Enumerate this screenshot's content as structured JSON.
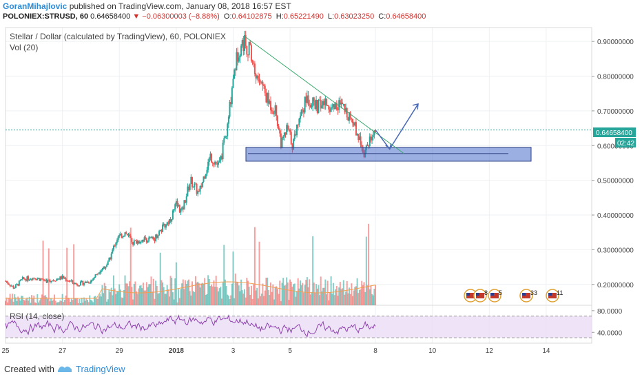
{
  "header": {
    "author": "GoranMihajlovic",
    "published": "published on TradingView.com, January 08, 2018 16:57 EST",
    "symbol": "POLONIEX:STRUSD, 60",
    "last": "0.64658400",
    "change": "−0.06300003 (−8.88%)",
    "o_label": "O:",
    "o_val": "0.64102875",
    "h_label": "H:",
    "h_val": "0.65221490",
    "l_label": "L:",
    "l_val": "0.63023250",
    "c_label": "C:",
    "c_val": "0.64658400"
  },
  "pane_title": "Stellar / Dollar (calculated by TradingView), 60, POLONIEX",
  "vol_label": "Vol (20)",
  "rsi_label": "RSI (14, close)",
  "price_label": "0.64658400",
  "timer_label": "02:42",
  "footer": {
    "created": "Created with",
    "brand": "TradingView"
  },
  "colors": {
    "up": "#26a69a",
    "down": "#ef5350",
    "accent": "#2a8bd8",
    "price_line": "#26a69a",
    "rsi_line": "#8e44ad",
    "rsi_band": "#e8d7f5",
    "zone_fill": "#4a6ecb",
    "trend": "#3caa6e",
    "arrow": "#4b6ab5"
  },
  "events": [
    "2",
    "8",
    "5",
    "33",
    "11"
  ],
  "chart_data": {
    "type": "candlestick",
    "title": "Stellar / Dollar (calculated by TradingView), 60, POLONIEX",
    "x_ticks": [
      "25",
      "27",
      "29",
      "2018",
      "3",
      "5",
      "8",
      "10",
      "12",
      "14"
    ],
    "y_ticks": [
      "0.90000000",
      "0.80000000",
      "0.70000000",
      "0.60000000",
      "0.50000000",
      "0.40000000",
      "0.30000000",
      "0.20000000"
    ],
    "y_range": [
      0.14,
      0.94
    ],
    "price_path": [
      {
        "t": 0,
        "p": 0.21
      },
      {
        "t": 0.3,
        "p": 0.19
      },
      {
        "t": 0.6,
        "p": 0.215
      },
      {
        "t": 1.0,
        "p": 0.22
      },
      {
        "t": 1.5,
        "p": 0.21
      },
      {
        "t": 2.0,
        "p": 0.22
      },
      {
        "t": 2.5,
        "p": 0.2
      },
      {
        "t": 3.0,
        "p": 0.21
      },
      {
        "t": 3.3,
        "p": 0.24
      },
      {
        "t": 3.6,
        "p": 0.26
      },
      {
        "t": 3.9,
        "p": 0.33
      },
      {
        "t": 4.2,
        "p": 0.35
      },
      {
        "t": 4.5,
        "p": 0.32
      },
      {
        "t": 4.8,
        "p": 0.33
      },
      {
        "t": 5.2,
        "p": 0.33
      },
      {
        "t": 5.5,
        "p": 0.36
      },
      {
        "t": 5.8,
        "p": 0.39
      },
      {
        "t": 6.0,
        "p": 0.43
      },
      {
        "t": 6.2,
        "p": 0.41
      },
      {
        "t": 6.5,
        "p": 0.5
      },
      {
        "t": 6.8,
        "p": 0.46
      },
      {
        "t": 7.0,
        "p": 0.52
      },
      {
        "t": 7.2,
        "p": 0.57
      },
      {
        "t": 7.5,
        "p": 0.54
      },
      {
        "t": 7.8,
        "p": 0.65
      },
      {
        "t": 8.0,
        "p": 0.8
      },
      {
        "t": 8.2,
        "p": 0.88
      },
      {
        "t": 8.4,
        "p": 0.9
      },
      {
        "t": 8.6,
        "p": 0.87
      },
      {
        "t": 8.8,
        "p": 0.8
      },
      {
        "t": 9.0,
        "p": 0.78
      },
      {
        "t": 9.2,
        "p": 0.73
      },
      {
        "t": 9.5,
        "p": 0.7
      },
      {
        "t": 9.7,
        "p": 0.6
      },
      {
        "t": 9.9,
        "p": 0.65
      },
      {
        "t": 10.1,
        "p": 0.6
      },
      {
        "t": 10.3,
        "p": 0.68
      },
      {
        "t": 10.6,
        "p": 0.74
      },
      {
        "t": 10.9,
        "p": 0.71
      },
      {
        "t": 11.2,
        "p": 0.72
      },
      {
        "t": 11.5,
        "p": 0.71
      },
      {
        "t": 11.7,
        "p": 0.72
      },
      {
        "t": 11.9,
        "p": 0.7
      },
      {
        "t": 12.1,
        "p": 0.69
      },
      {
        "t": 12.4,
        "p": 0.63
      },
      {
        "t": 12.6,
        "p": 0.58
      },
      {
        "t": 12.8,
        "p": 0.62
      },
      {
        "t": 13.0,
        "p": 0.645
      }
    ],
    "support_zone": {
      "low": 0.555,
      "high": 0.595
    },
    "support_line": 0.577,
    "trendline": [
      {
        "t": 8.4,
        "p": 0.915
      },
      {
        "t": 14.0,
        "p": 0.577
      }
    ],
    "projection": {
      "start": {
        "t": 13.0,
        "p": 0.645
      },
      "down_to": {
        "t": 13.5,
        "p": 0.59
      },
      "up_to": {
        "t": 14.5,
        "p": 0.72
      }
    },
    "rsi": {
      "y_ticks": [
        "80.0000",
        "40.0000"
      ],
      "band": [
        30,
        70
      ],
      "range": [
        20,
        90
      ]
    },
    "x_time_ticks": [
      {
        "label": "25",
        "t": 0.0
      },
      {
        "label": "27",
        "t": 2.0
      },
      {
        "label": "29",
        "t": 4.0
      },
      {
        "label": "2018",
        "t": 6.0
      },
      {
        "label": "3",
        "t": 8.0
      },
      {
        "label": "5",
        "t": 10.0
      },
      {
        "label": "8",
        "t": 13.0
      },
      {
        "label": "10",
        "t": 15.0
      },
      {
        "label": "12",
        "t": 17.0
      },
      {
        "label": "14",
        "t": 19.0
      }
    ]
  }
}
